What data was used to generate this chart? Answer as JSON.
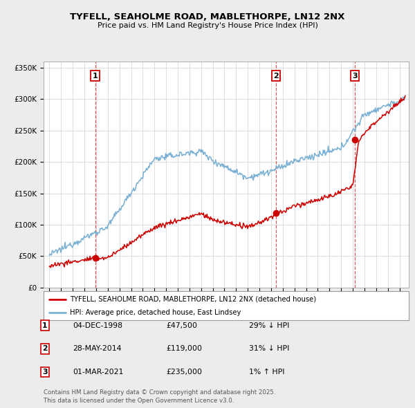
{
  "title": "TYFELL, SEAHOLME ROAD, MABLETHORPE, LN12 2NX",
  "subtitle": "Price paid vs. HM Land Registry's House Price Index (HPI)",
  "background_color": "#ececec",
  "plot_bg_color": "#ffffff",
  "legend_label_red": "TYFELL, SEAHOLME ROAD, MABLETHORPE, LN12 2NX (detached house)",
  "legend_label_blue": "HPI: Average price, detached house, East Lindsey",
  "footer": "Contains HM Land Registry data © Crown copyright and database right 2025.\nThis data is licensed under the Open Government Licence v3.0.",
  "sales": [
    {
      "num": 1,
      "date": "04-DEC-1998",
      "price": 47500,
      "x": 1998.92,
      "label": "29% ↓ HPI"
    },
    {
      "num": 2,
      "date": "28-MAY-2014",
      "price": 119000,
      "x": 2014.41,
      "label": "31% ↓ HPI"
    },
    {
      "num": 3,
      "date": "01-MAR-2021",
      "price": 235000,
      "x": 2021.17,
      "label": "1% ↑ HPI"
    }
  ],
  "red_color": "#cc0000",
  "blue_color": "#7ab0d4",
  "ylim": [
    0,
    360000
  ],
  "xlim": [
    1994.5,
    2025.8
  ],
  "yticks": [
    0,
    50000,
    100000,
    150000,
    200000,
    250000,
    300000,
    350000
  ],
  "ytick_labels": [
    "£0",
    "£50K",
    "£100K",
    "£150K",
    "£200K",
    "£250K",
    "£300K",
    "£350K"
  ]
}
